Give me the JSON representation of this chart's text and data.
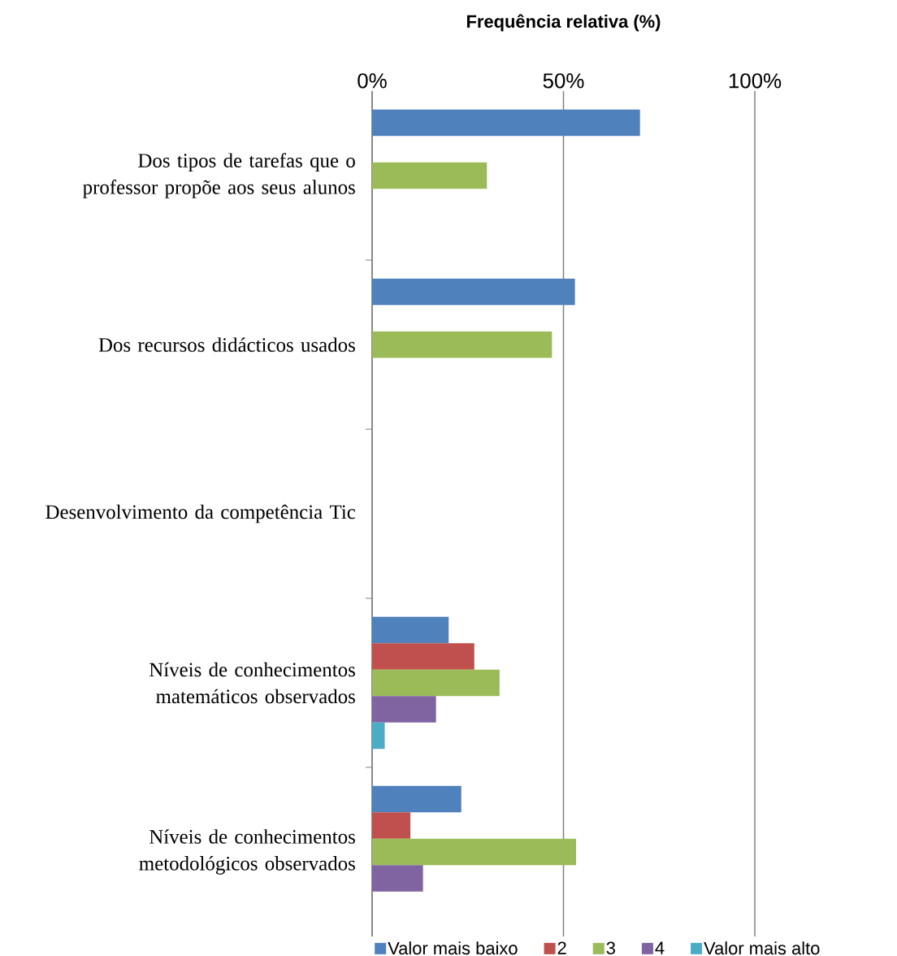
{
  "chart_data": {
    "type": "bar",
    "orientation": "horizontal",
    "xlabel": "Frequência relativa (%)",
    "categories": [
      "Dos tipos de tarefas que o professor propõe aos seus alunos",
      "Dos recursos didácticos usados",
      "Desenvolvimento da competência Tic",
      "Níveis de conhecimentos matemáticos observados",
      "Níveis de conhecimentos metodológicos observados"
    ],
    "series": [
      {
        "name": "Valor mais baixo",
        "color": "#4f81bd",
        "values": [
          70,
          53,
          0,
          20,
          23.3
        ]
      },
      {
        "name": "2",
        "color": "#c0504d",
        "values": [
          0,
          0,
          0,
          26.7,
          10
        ]
      },
      {
        "name": "3",
        "color": "#9bbb59",
        "values": [
          30,
          47,
          0,
          33.3,
          53.3
        ]
      },
      {
        "name": "4",
        "color": "#8064a2",
        "values": [
          0,
          0,
          0,
          16.7,
          13.3
        ]
      },
      {
        "name": "Valor mais alto",
        "color": "#4bacc6",
        "values": [
          0,
          0,
          0,
          3.3,
          0
        ]
      }
    ],
    "xlim": [
      0,
      100
    ],
    "xticks": [
      {
        "value": 0,
        "label": "0%"
      },
      {
        "value": 50,
        "label": "50%"
      },
      {
        "value": 100,
        "label": "100%"
      }
    ],
    "grid": "x",
    "legend": "bottom"
  }
}
